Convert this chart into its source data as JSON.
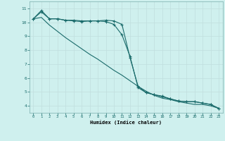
{
  "xlabel": "Humidex (Indice chaleur)",
  "bg_color": "#cff0ee",
  "grid_color": "#c0dede",
  "line_color": "#1a6b6b",
  "xlim": [
    -0.5,
    23.5
  ],
  "ylim": [
    3.5,
    11.5
  ],
  "yticks": [
    4,
    5,
    6,
    7,
    8,
    9,
    10,
    11
  ],
  "xticks": [
    0,
    1,
    2,
    3,
    4,
    5,
    6,
    7,
    8,
    9,
    10,
    11,
    12,
    13,
    14,
    15,
    16,
    17,
    18,
    19,
    20,
    21,
    22,
    23
  ],
  "series1_x": [
    0,
    1,
    2,
    3,
    4,
    5,
    6,
    7,
    8,
    9,
    10,
    11,
    12,
    13,
    14,
    15,
    16,
    17,
    18,
    19,
    20,
    21,
    22,
    23
  ],
  "series1_y": [
    10.25,
    10.85,
    10.25,
    10.25,
    10.15,
    10.15,
    10.1,
    10.1,
    10.1,
    10.05,
    9.85,
    9.1,
    7.55,
    5.3,
    4.95,
    4.8,
    4.7,
    4.5,
    4.35,
    4.3,
    4.3,
    4.2,
    4.1,
    3.82
  ],
  "series2_x": [
    0,
    1,
    2,
    3,
    4,
    5,
    6,
    7,
    8,
    9,
    10,
    11,
    12,
    13,
    14,
    15,
    16,
    17,
    18,
    19,
    20,
    21,
    22,
    23
  ],
  "series2_y": [
    10.25,
    10.75,
    10.25,
    10.25,
    10.15,
    10.1,
    10.05,
    10.1,
    10.1,
    10.15,
    10.1,
    9.85,
    7.45,
    5.4,
    4.95,
    4.8,
    4.65,
    4.5,
    4.35,
    4.3,
    4.3,
    4.2,
    4.1,
    3.82
  ],
  "series3_x": [
    0,
    1,
    2,
    3,
    4,
    5,
    6,
    7,
    8,
    9,
    10,
    11,
    12,
    13,
    14,
    15,
    16,
    17,
    18,
    19,
    20,
    21,
    22,
    23
  ],
  "series3_y": [
    10.25,
    10.35,
    9.8,
    9.35,
    8.9,
    8.5,
    8.1,
    7.7,
    7.35,
    6.95,
    6.55,
    6.2,
    5.8,
    5.4,
    5.05,
    4.75,
    4.55,
    4.45,
    4.3,
    4.2,
    4.1,
    4.1,
    4.0,
    3.82
  ]
}
